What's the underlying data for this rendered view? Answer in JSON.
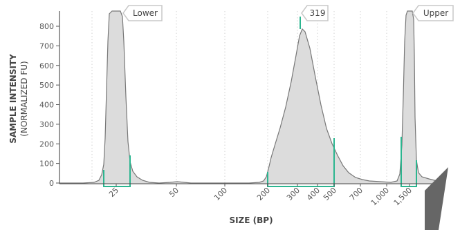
{
  "chart_data": {
    "type": "area",
    "xlabel": "SIZE (BP)",
    "ylabel": "SAMPLE INTENSITY",
    "ylabel_sub": "(NORMALIZED FU)",
    "y_ticks": [
      0,
      100,
      200,
      300,
      400,
      500,
      600,
      700,
      800
    ],
    "ylim": [
      0,
      850
    ],
    "x_ticks": [
      "25",
      "50",
      "100",
      "200",
      "300",
      "400",
      "500",
      "700",
      "1,000",
      "1,500"
    ],
    "grid": "vertical dotted",
    "peaks": [
      {
        "label": "Lower",
        "size_bp": 25,
        "intensity": 850,
        "region": [
          "20",
          "30"
        ]
      },
      {
        "label": "319",
        "size_bp": 319,
        "intensity": 790,
        "region": [
          "200",
          "500"
        ]
      },
      {
        "label": "Upper",
        "size_bp": 1500,
        "intensity": 850,
        "region": [
          "1,200",
          "1,700"
        ]
      }
    ],
    "trace": [
      {
        "size": "<20",
        "intensity": 0
      },
      {
        "size": "25",
        "intensity": 850
      },
      {
        "size": "30",
        "intensity": 30
      },
      {
        "size": "50",
        "intensity": 8
      },
      {
        "size": "100",
        "intensity": 0
      },
      {
        "size": "200",
        "intensity": 120
      },
      {
        "size": "319",
        "intensity": 790
      },
      {
        "size": "500",
        "intensity": 200
      },
      {
        "size": "700",
        "intensity": 20
      },
      {
        "size": "1,000",
        "intensity": 5
      },
      {
        "size": "1,500",
        "intensity": 850
      },
      {
        "size": ">1,700",
        "intensity": 20
      }
    ],
    "colors": {
      "fill": "#dcdcdc",
      "line": "#777777",
      "region": "#2bb58f",
      "axis": "#555555"
    }
  }
}
